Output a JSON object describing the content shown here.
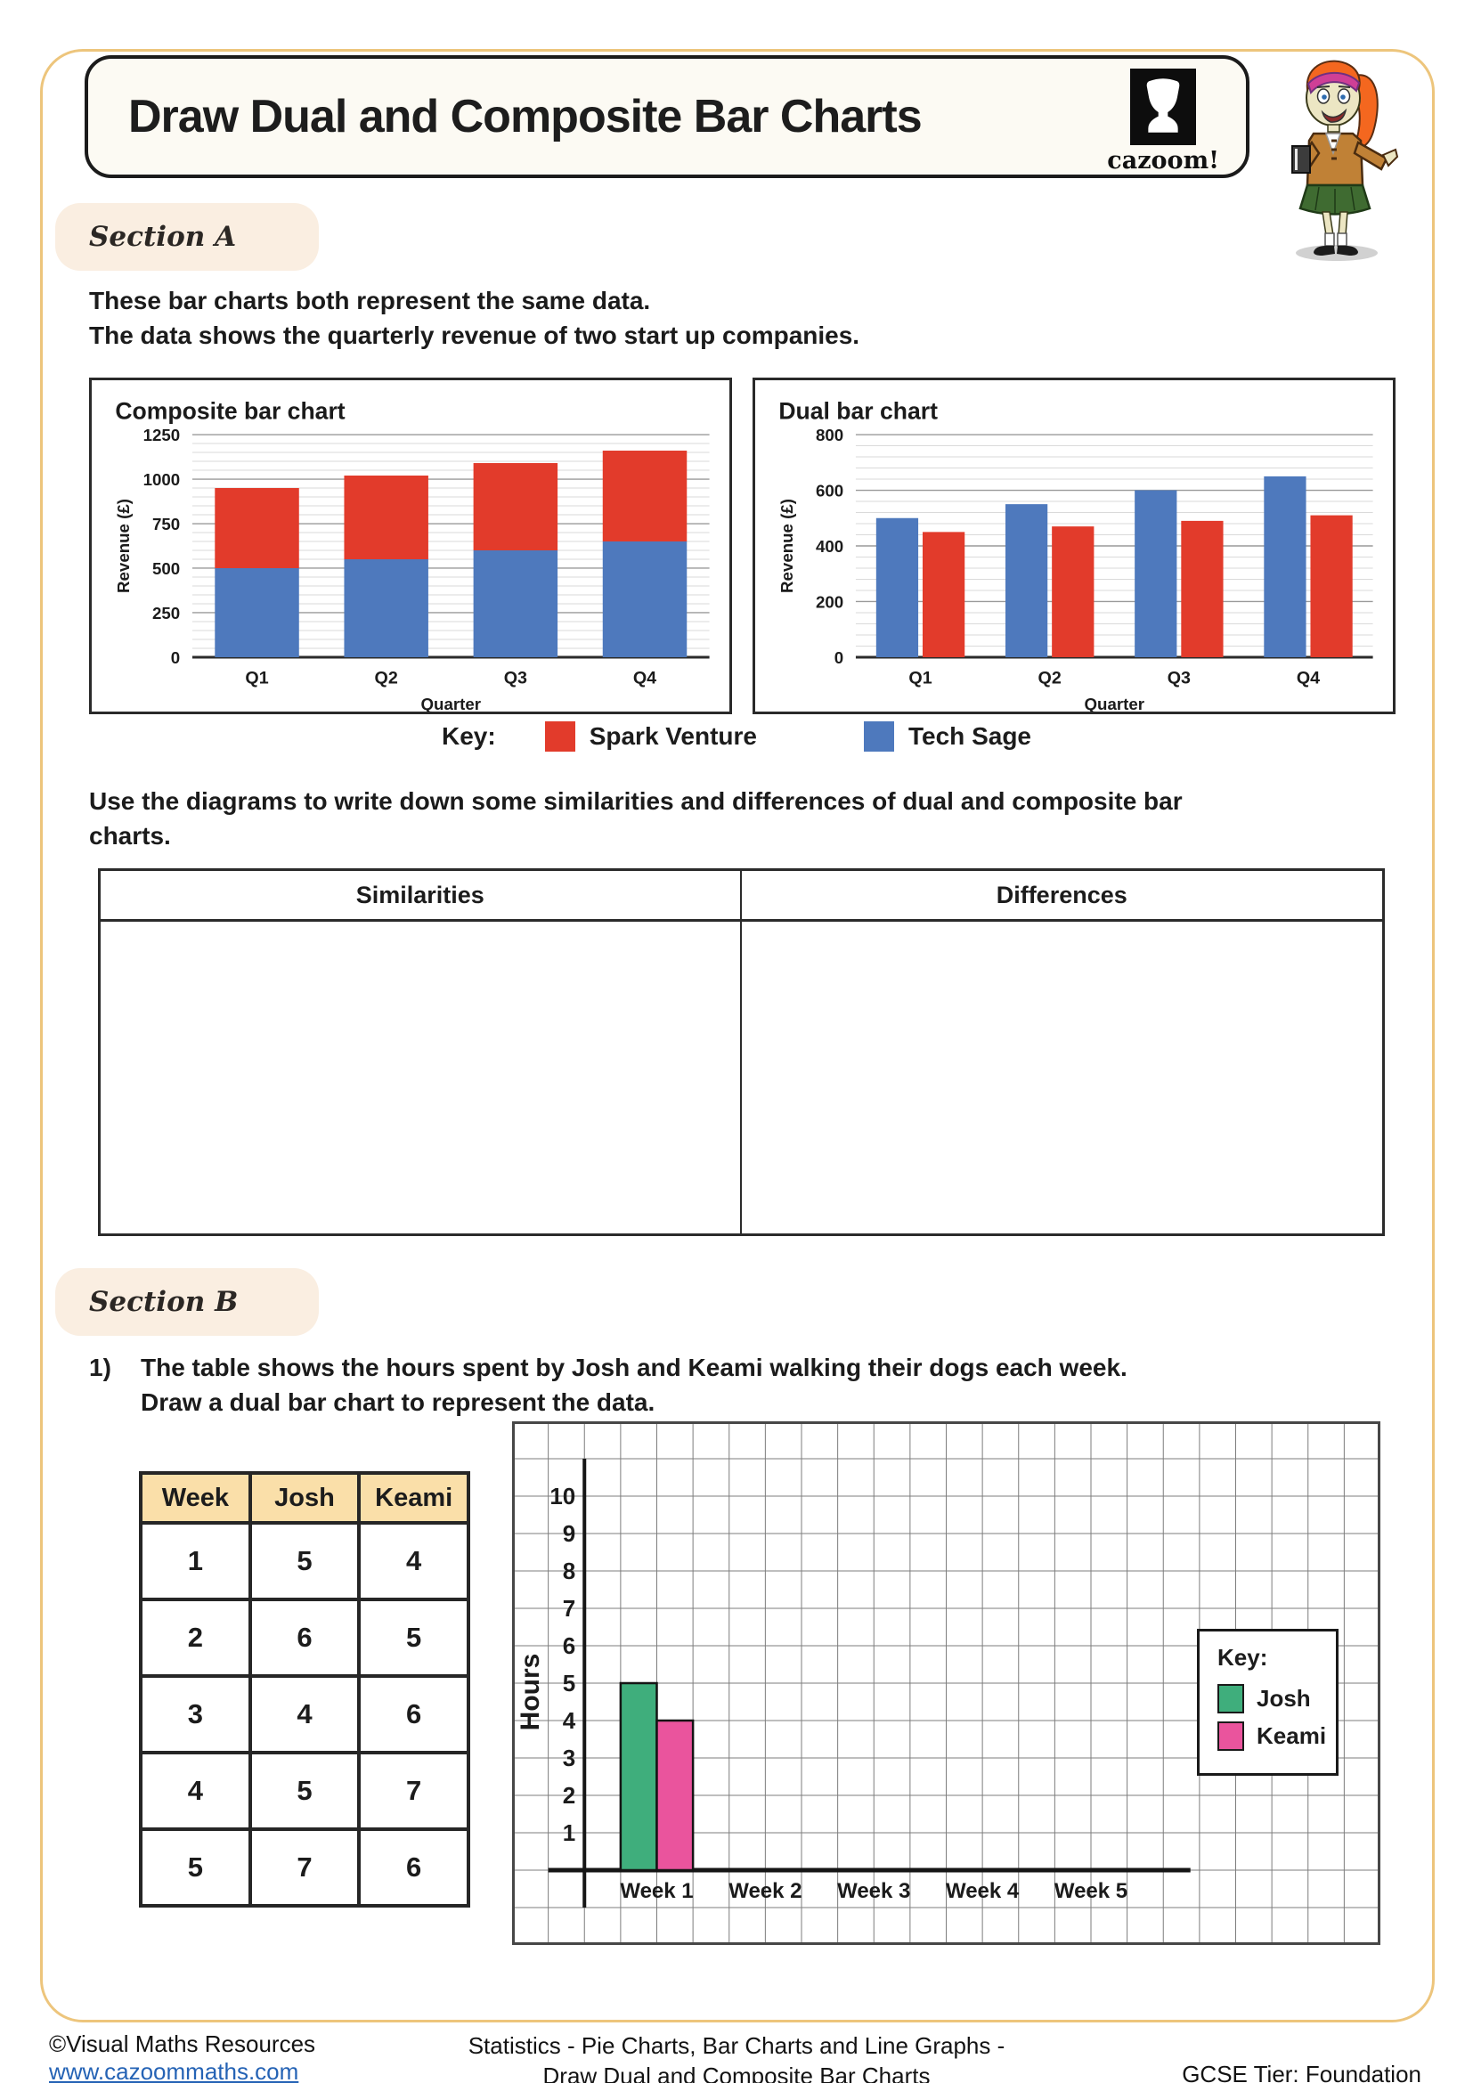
{
  "page": {
    "title": "Draw Dual and Composite Bar Charts",
    "brand": {
      "logo_text": "cazoom!"
    },
    "footer": {
      "copyright": "©Visual Maths Resources",
      "website": "www.cazoommaths.com",
      "topic_line1": "Statistics - Pie Charts, Bar Charts and Line Graphs -",
      "topic_line2": "Draw Dual and Composite Bar Charts",
      "tier": "GCSE Tier: Foundation"
    }
  },
  "section_a": {
    "label": "Section A",
    "intro_line1": "These bar charts both represent the same data.",
    "intro_line2": "The data shows the quarterly revenue of two start up companies.",
    "key": {
      "label": "Key:",
      "items": [
        {
          "name": "Spark Venture",
          "color": "#e23b2b"
        },
        {
          "name": "Tech Sage",
          "color": "#4e79bd"
        }
      ]
    },
    "prompt_line1": "Use the diagrams to write down some similarities and differences of dual and composite bar",
    "prompt_line2": "charts.",
    "table": {
      "headers": [
        "Similarities",
        "Differences"
      ]
    }
  },
  "section_b": {
    "label": "Section B",
    "question_number": "1)",
    "question_line1": "The table shows the hours spent by Josh and Keami walking their dogs each week.",
    "question_line2": "Draw a dual bar chart to represent the data.",
    "data_table": {
      "headers": [
        "Week",
        "Josh",
        "Keami"
      ],
      "rows": [
        [
          "1",
          "5",
          "4"
        ],
        [
          "2",
          "6",
          "5"
        ],
        [
          "3",
          "4",
          "6"
        ],
        [
          "4",
          "5",
          "7"
        ],
        [
          "5",
          "7",
          "6"
        ]
      ]
    },
    "key": {
      "label": "Key:",
      "items": [
        {
          "name": "Josh",
          "color": "#3fae7c"
        },
        {
          "name": "Keami",
          "color": "#ea549d"
        }
      ]
    }
  },
  "chart_data": [
    {
      "id": "composite",
      "type": "bar",
      "variant": "stacked",
      "title": "Composite bar chart",
      "xlabel": "Quarter",
      "ylabel": "Revenue (£)",
      "categories": [
        "Q1",
        "Q2",
        "Q3",
        "Q4"
      ],
      "series": [
        {
          "name": "Tech Sage",
          "color": "#4e79bd",
          "values": [
            500,
            550,
            600,
            650
          ]
        },
        {
          "name": "Spark Venture",
          "color": "#e23b2b",
          "values": [
            450,
            470,
            490,
            510
          ]
        }
      ],
      "ylim": [
        0,
        1250
      ],
      "ytick_major": 250,
      "ytick_minor": 50,
      "grid": true,
      "legend_position": "below-shared"
    },
    {
      "id": "dual",
      "type": "bar",
      "variant": "grouped",
      "title": "Dual bar chart",
      "xlabel": "Quarter",
      "ylabel": "Revenue (£)",
      "categories": [
        "Q1",
        "Q2",
        "Q3",
        "Q4"
      ],
      "series": [
        {
          "name": "Tech Sage",
          "color": "#4e79bd",
          "values": [
            500,
            550,
            600,
            650
          ]
        },
        {
          "name": "Spark Venture",
          "color": "#e23b2b",
          "values": [
            450,
            470,
            490,
            510
          ]
        }
      ],
      "ylim": [
        0,
        800
      ],
      "ytick_major": 200,
      "ytick_minor": 40,
      "grid": true,
      "legend_position": "below-shared"
    },
    {
      "id": "practice",
      "type": "bar",
      "variant": "grouped",
      "title": "",
      "xlabel": "",
      "ylabel": "Hours",
      "categories": [
        "Week 1",
        "Week 2",
        "Week 3",
        "Week 4",
        "Week 5"
      ],
      "series": [
        {
          "name": "Josh",
          "color": "#3fae7c",
          "values": [
            5,
            null,
            null,
            null,
            null
          ]
        },
        {
          "name": "Keami",
          "color": "#ea549d",
          "values": [
            4,
            null,
            null,
            null,
            null
          ]
        }
      ],
      "ylim": [
        0,
        10
      ],
      "ytick_major": 1,
      "yticks": [
        1,
        2,
        3,
        4,
        5,
        6,
        7,
        8,
        9,
        10
      ],
      "grid": "square-graph-paper",
      "legend_position": "key-box-right"
    }
  ]
}
